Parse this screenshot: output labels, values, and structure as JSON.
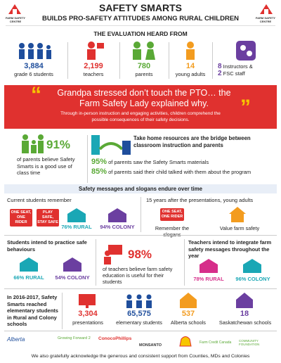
{
  "header": {
    "title": "SAFETY SMARTS",
    "subtitle": "BUILDS PRO-SAFETY ATTITUDES AMONG RURAL CHILDREN",
    "logo": "FARM SAFETY CENTRE"
  },
  "evaluation": {
    "heading": "THE EVALUATION HEARD FROM",
    "items": [
      {
        "number": "3,884",
        "label": "grade 6 students"
      },
      {
        "number": "2,199",
        "label": "teachers"
      },
      {
        "number": "780",
        "label": "parents"
      },
      {
        "number": "14",
        "label": "young adults"
      },
      {
        "number": "8",
        "label": "Instructors &",
        "number2": "2",
        "label2": "FSC staff"
      }
    ]
  },
  "quote": {
    "text": "Grandpa stressed don’t touch the PTO… the Farm Safety Lady explained why.",
    "caption": "Through in-person instruction and engaging activities, children comprehend the possible consequences of their safety decisions."
  },
  "parents": {
    "percent": "91%",
    "text": "of parents believe Safety Smarts is a good use of class time"
  },
  "resources": {
    "heading": "Take home resources are the bridge between classroom instruction and parents",
    "items": [
      {
        "percent": "95%",
        "text": "of parents saw the Safety Smarts materials"
      },
      {
        "percent": "85%",
        "text": "of parents said their child talked with them about the program"
      }
    ]
  },
  "slogans": {
    "heading": "Safety messages and slogans endure over time",
    "current": {
      "title": "Current students remember",
      "sign1": "ONE SEAT, ONE RIDER",
      "sign2": "PLAY SAFE, STAY SAFE",
      "rural": "76% RURAL",
      "colony": "94% COLONY"
    },
    "adults": {
      "title": "15 years after the presentations, young adults",
      "sign": "ONE SEAT, ONE RIDER",
      "label1": "Remember the slogans",
      "label2": "Value farm safety"
    }
  },
  "intent": {
    "students": {
      "title": "Students intend to practice safe behaviours",
      "rural": "66% RURAL",
      "colony": "54% COLONY"
    },
    "teachers_useful": {
      "percent": "98%",
      "text": "of teachers believe farm safety education is useful for their students"
    },
    "teachers": {
      "title": "Teachers intend to integrate farm safety messages throughout the year",
      "rural": "78% RURAL",
      "colony": "96% COLONY"
    }
  },
  "reach": {
    "text": "In 2016-2017, Safety Smarts reached elementary students in Rural and Colony schools",
    "items": [
      {
        "number": "3,304",
        "label": "presentations"
      },
      {
        "number": "65,575",
        "label": "elementary students"
      },
      {
        "number": "537",
        "label": "Alberta schools"
      },
      {
        "number": "18",
        "label": "Saskatchewan schools"
      }
    ]
  },
  "sponsors": [
    "Alberta",
    "Growing Forward 2",
    "ConocoPhillips",
    "MONSANTO",
    "Farm Credit Canada",
    "COMMUNITY FOUNDATION"
  ],
  "footer": "We also gratefully acknowledge the generous and consistent support from Counties, MDs and Colonies"
}
